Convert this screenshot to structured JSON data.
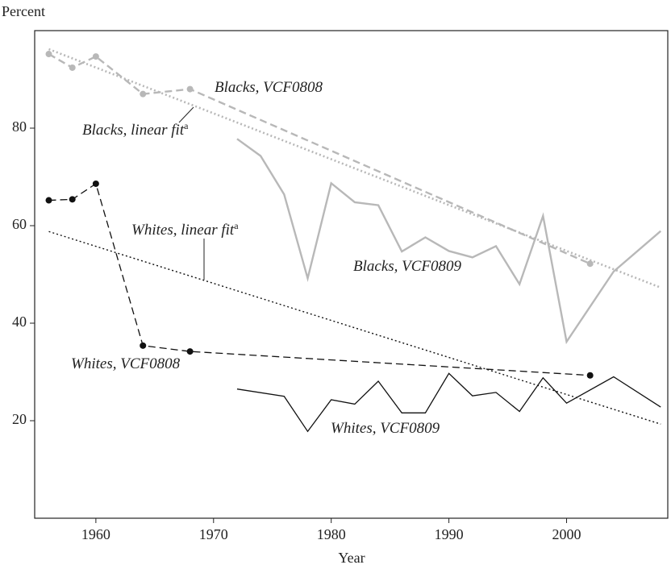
{
  "chart_data": {
    "type": "line",
    "y_label": "Percent",
    "x_label": "Year",
    "xlim": [
      1954.8,
      2008.6
    ],
    "xticks": [
      1960,
      1970,
      1980,
      1990,
      2000
    ],
    "ylim": [
      0,
      100
    ],
    "yticks": [
      20,
      40,
      60,
      80
    ],
    "series": [
      {
        "name": "Blacks, VCF0808",
        "color": "#b8b8b8",
        "dash": "dashed",
        "markers": true,
        "x": [
          1956,
          1958,
          1960,
          1964,
          1968,
          2002
        ],
        "values": [
          95.2,
          92.4,
          94.7,
          87,
          88,
          52.2
        ]
      },
      {
        "name": "Blacks, linear fit",
        "note": "a",
        "color": "#b8b8b8",
        "dash": "dotted",
        "markers": false,
        "x": [
          1956,
          2008
        ],
        "values": [
          96.2,
          47.3
        ]
      },
      {
        "name": "Blacks, VCF0809",
        "color": "#b8b8b8",
        "dash": "solid",
        "markers": false,
        "x": [
          1972,
          1974,
          1976,
          1978,
          1980,
          1982,
          1984,
          1986,
          1988,
          1990,
          1992,
          1994,
          1996,
          1998,
          2000,
          2004,
          2008
        ],
        "values": [
          77.8,
          74.3,
          66.4,
          49.2,
          68.7,
          64.8,
          64.2,
          54.7,
          57.6,
          54.8,
          53.5,
          55.8,
          48,
          62,
          36.2,
          50.6,
          58.9
        ]
      },
      {
        "name": "Whites, VCF0808",
        "color": "#111111",
        "dash": "dashed",
        "markers": true,
        "x": [
          1956,
          1958,
          1960,
          1964,
          1968,
          2002
        ],
        "values": [
          65.2,
          65.4,
          68.6,
          35.4,
          34.2,
          29.3
        ]
      },
      {
        "name": "Whites, linear fit",
        "note": "a",
        "color": "#111111",
        "dash": "dotted",
        "markers": false,
        "x": [
          1956,
          2008
        ],
        "values": [
          58.8,
          19.3
        ]
      },
      {
        "name": "Whites, VCF0809",
        "color": "#111111",
        "dash": "solid",
        "markers": false,
        "x": [
          1972,
          1976,
          1978,
          1980,
          1982,
          1984,
          1986,
          1988,
          1990,
          1992,
          1994,
          1996,
          1998,
          2000,
          2004,
          2008
        ],
        "values": [
          26.5,
          25,
          17.8,
          24.3,
          23.4,
          28.1,
          21.6,
          21.6,
          29.7,
          25.1,
          25.8,
          21.9,
          28.8,
          23.6,
          29,
          22.8
        ]
      }
    ]
  }
}
